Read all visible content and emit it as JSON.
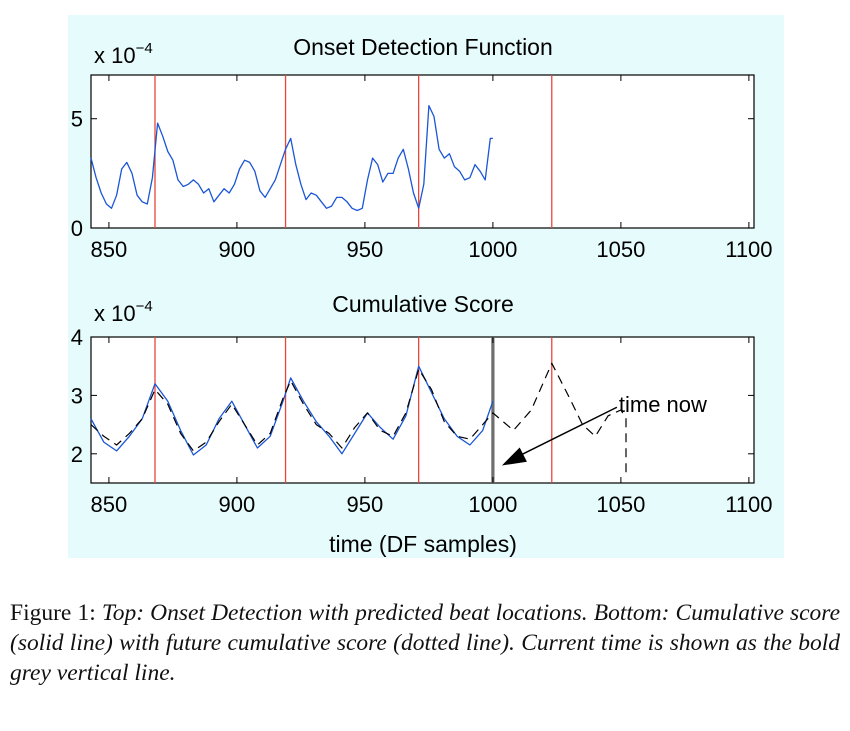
{
  "chart_data": [
    {
      "type": "line",
      "title": "Onset Detection Function",
      "scale_label_prefix": "x 10",
      "scale_label_exp": "−4",
      "x_ticks": [
        850,
        900,
        950,
        1000,
        1050,
        1100
      ],
      "y_ticks": [
        0,
        5
      ],
      "xlim": [
        843,
        1102
      ],
      "ylim": [
        0,
        7
      ],
      "grid": false,
      "beat_lines": [
        868,
        919,
        971,
        1023
      ],
      "beat_color": "#e8473a",
      "series": [
        {
          "style": "solid",
          "color": "#1a56d6",
          "x": [
            843,
            845,
            847,
            849,
            851,
            853,
            855,
            857,
            859,
            861,
            863,
            865,
            867,
            869,
            871,
            873,
            875,
            877,
            879,
            881,
            883,
            885,
            887,
            889,
            891,
            893,
            895,
            897,
            899,
            901,
            903,
            905,
            907,
            909,
            911,
            913,
            915,
            917,
            919,
            921,
            923,
            925,
            927,
            929,
            931,
            933,
            935,
            937,
            939,
            941,
            943,
            945,
            947,
            949,
            951,
            953,
            955,
            957,
            959,
            961,
            963,
            965,
            967,
            969,
            971,
            973,
            975,
            977,
            979,
            981,
            983,
            985,
            987,
            989,
            991,
            993,
            995,
            997,
            999,
            1000
          ],
          "y": [
            3.2,
            2.3,
            1.6,
            1.1,
            0.9,
            1.5,
            2.7,
            3.0,
            2.5,
            1.5,
            1.2,
            1.1,
            2.3,
            4.8,
            4.2,
            3.5,
            3.1,
            2.2,
            1.9,
            2.0,
            2.2,
            2.0,
            1.6,
            1.8,
            1.2,
            1.5,
            1.8,
            1.6,
            2.0,
            2.7,
            3.1,
            3.0,
            2.6,
            1.7,
            1.4,
            1.8,
            2.2,
            2.9,
            3.6,
            4.1,
            2.9,
            2.0,
            1.3,
            1.6,
            1.5,
            1.2,
            0.9,
            1.0,
            1.4,
            1.4,
            1.2,
            0.9,
            0.8,
            0.9,
            2.2,
            3.2,
            2.9,
            2.1,
            2.5,
            2.5,
            3.2,
            3.6,
            2.7,
            1.6,
            0.9,
            2.0,
            5.6,
            5.1,
            3.6,
            3.2,
            3.4,
            2.8,
            2.6,
            2.2,
            2.3,
            2.9,
            2.6,
            2.2,
            4.1,
            4.1
          ]
        }
      ]
    },
    {
      "type": "line",
      "title": "Cumulative Score",
      "xlabel": "time (DF samples)",
      "scale_label_prefix": "x 10",
      "scale_label_exp": "−4",
      "x_ticks": [
        850,
        900,
        950,
        1000,
        1050,
        1100
      ],
      "y_ticks": [
        2,
        3,
        4
      ],
      "xlim": [
        843,
        1102
      ],
      "ylim": [
        1.5,
        4
      ],
      "grid": false,
      "beat_lines": [
        868,
        919,
        971,
        1023
      ],
      "beat_color": "#e8473a",
      "current_time": 1000,
      "current_time_color": "#6e6e6e",
      "annotation": {
        "text": "time now",
        "x": 1050,
        "y": 2.9
      },
      "series": [
        {
          "name": "Cumulative score",
          "style": "solid",
          "color": "#1a56d6",
          "x": [
            843,
            848,
            853,
            858,
            863,
            868,
            873,
            878,
            883,
            888,
            893,
            898,
            903,
            908,
            913,
            918,
            921,
            926,
            931,
            936,
            941,
            946,
            951,
            956,
            961,
            966,
            971,
            976,
            981,
            986,
            991,
            996,
            1000
          ],
          "y": [
            2.6,
            2.2,
            2.05,
            2.3,
            2.6,
            3.2,
            2.9,
            2.4,
            1.98,
            2.15,
            2.6,
            2.9,
            2.5,
            2.1,
            2.3,
            2.9,
            3.3,
            2.9,
            2.55,
            2.3,
            2.0,
            2.35,
            2.7,
            2.45,
            2.25,
            2.65,
            3.5,
            3.05,
            2.6,
            2.3,
            2.15,
            2.4,
            2.9
          ]
        },
        {
          "name": "Future cumulative score",
          "style": "dashed",
          "color": "#000000",
          "x": [
            843,
            848,
            853,
            858,
            863,
            868,
            873,
            878,
            883,
            888,
            893,
            898,
            903,
            908,
            913,
            918,
            921,
            926,
            931,
            936,
            941,
            946,
            951,
            956,
            961,
            966,
            971,
            976,
            981,
            986,
            991,
            996,
            1000,
            1008,
            1015,
            1023,
            1030,
            1035,
            1040,
            1045,
            1050,
            1052,
            1052
          ],
          "y": [
            2.5,
            2.3,
            2.15,
            2.35,
            2.6,
            3.1,
            2.85,
            2.35,
            2.05,
            2.2,
            2.55,
            2.85,
            2.5,
            2.15,
            2.35,
            2.95,
            3.25,
            2.85,
            2.5,
            2.35,
            2.1,
            2.45,
            2.7,
            2.4,
            2.3,
            2.7,
            3.45,
            3.1,
            2.55,
            2.3,
            2.25,
            2.5,
            2.7,
            2.4,
            2.75,
            3.55,
            2.95,
            2.5,
            2.3,
            2.65,
            2.75,
            2.6,
            1.6
          ]
        }
      ]
    }
  ],
  "caption": {
    "label": "Figure 1: ",
    "text": "Top: Onset Detection with predicted beat locations. Bottom: Cumulative score (solid line) with future cumulative score (dotted line). Current time is shown as the bold grey vertical line."
  },
  "colors": {
    "figure_background": "#e6fbfc",
    "axes_background": "#ffffff"
  }
}
